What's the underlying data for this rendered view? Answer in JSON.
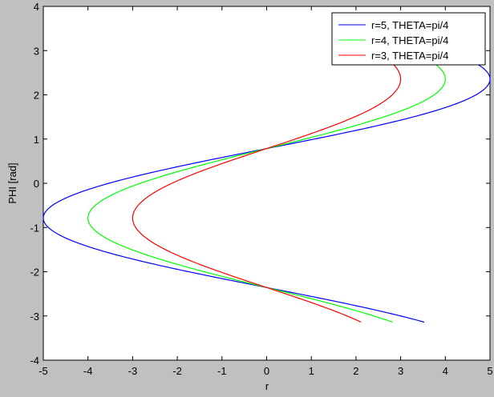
{
  "chart_data": {
    "type": "line",
    "title": "",
    "xlabel": "r",
    "ylabel": "PHI [rad]",
    "xlim": [
      -5,
      5
    ],
    "ylim": [
      -4,
      4
    ],
    "x_ticks": [
      -5,
      -4,
      -3,
      -2,
      -1,
      0,
      1,
      2,
      3,
      4,
      5
    ],
    "y_ticks": [
      -4,
      -3,
      -2,
      -1,
      0,
      1,
      2,
      3,
      4
    ],
    "grid": false,
    "legend_position": "top-right",
    "series": [
      {
        "name": "r=5, THETA=pi/4",
        "color": "#0000ff",
        "amplitude": 5,
        "phase": 0.785,
        "phi_range": [
          -3.14,
          3.14
        ]
      },
      {
        "name": "r=4, THETA=pi/4",
        "color": "#00ff00",
        "amplitude": 4,
        "phase": 0.785,
        "phi_range": [
          -3.14,
          3.14
        ]
      },
      {
        "name": "r=3, THETA=pi/4",
        "color": "#ff0000",
        "amplitude": 3,
        "phase": 0.785,
        "phi_range": [
          -3.14,
          3.14
        ]
      }
    ]
  }
}
